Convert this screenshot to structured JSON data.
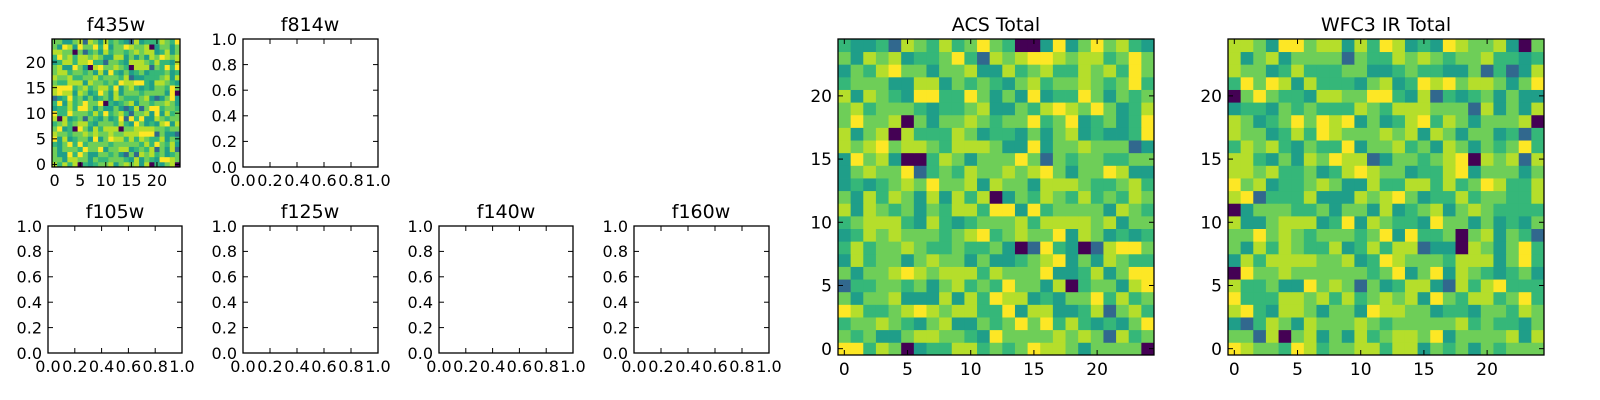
{
  "chart_data": [
    {
      "type": "heatmap",
      "title": "f435w",
      "xlim": [
        -0.5,
        24.5
      ],
      "ylim": [
        -0.5,
        24.5
      ],
      "xticks": [
        0,
        5,
        10,
        15,
        20
      ],
      "yticks": [
        0,
        5,
        10,
        15,
        20
      ],
      "grid_shape": [
        25,
        25
      ],
      "colormap": "viridis",
      "dark_cells": [
        [
          5,
          0
        ],
        [
          19,
          0
        ],
        [
          24,
          0
        ],
        [
          4,
          7
        ],
        [
          13,
          7
        ],
        [
          1,
          9
        ],
        [
          10,
          12
        ],
        [
          24,
          14
        ],
        [
          7,
          19
        ],
        [
          15,
          19
        ],
        [
          4,
          22
        ],
        [
          19,
          23
        ]
      ]
    },
    {
      "type": "empty",
      "title": "f814w",
      "xlim": [
        0,
        1
      ],
      "ylim": [
        0,
        1
      ],
      "xticks": [
        "0.0",
        "0.2",
        "0.4",
        "0.6",
        "0.8",
        "1.0"
      ],
      "yticks": [
        "0.0",
        "0.2",
        "0.4",
        "0.6",
        "0.8",
        "1.0"
      ]
    },
    {
      "type": "empty",
      "title": "f105w",
      "xlim": [
        0,
        1
      ],
      "ylim": [
        0,
        1
      ],
      "xticks": [
        "0.0",
        "0.2",
        "0.4",
        "0.6",
        "0.8",
        "1.0"
      ],
      "yticks": [
        "0.0",
        "0.2",
        "0.4",
        "0.6",
        "0.8",
        "1.0"
      ]
    },
    {
      "type": "empty",
      "title": "f125w",
      "xlim": [
        0,
        1
      ],
      "ylim": [
        0,
        1
      ],
      "xticks": [
        "0.0",
        "0.2",
        "0.4",
        "0.6",
        "0.8",
        "1.0"
      ],
      "yticks": [
        "0.0",
        "0.2",
        "0.4",
        "0.6",
        "0.8",
        "1.0"
      ]
    },
    {
      "type": "empty",
      "title": "f140w",
      "xlim": [
        0,
        1
      ],
      "ylim": [
        0,
        1
      ],
      "xticks": [
        "0.0",
        "0.2",
        "0.4",
        "0.6",
        "0.8",
        "1.0"
      ],
      "yticks": [
        "0.0",
        "0.2",
        "0.4",
        "0.6",
        "0.8",
        "1.0"
      ]
    },
    {
      "type": "empty",
      "title": "f160w",
      "xlim": [
        0,
        1
      ],
      "ylim": [
        0,
        1
      ],
      "xticks": [
        "0.0",
        "0.2",
        "0.4",
        "0.6",
        "0.8",
        "1.0"
      ],
      "yticks": [
        "0.0",
        "0.2",
        "0.4",
        "0.6",
        "0.8",
        "1.0"
      ]
    },
    {
      "type": "heatmap",
      "title": "ACS Total",
      "xlim": [
        -0.5,
        24.5
      ],
      "ylim": [
        -0.5,
        24.5
      ],
      "xticks": [
        0,
        5,
        10,
        15,
        20
      ],
      "yticks": [
        0,
        5,
        10,
        15,
        20
      ],
      "grid_shape": [
        25,
        25
      ],
      "colormap": "viridis",
      "dark_cells": [
        [
          5,
          0
        ],
        [
          24,
          0
        ],
        [
          18,
          5
        ],
        [
          14,
          8
        ],
        [
          19,
          8
        ],
        [
          12,
          12
        ],
        [
          5,
          15
        ],
        [
          6,
          15
        ],
        [
          4,
          17
        ],
        [
          5,
          18
        ],
        [
          14,
          24
        ],
        [
          15,
          24
        ]
      ]
    },
    {
      "type": "heatmap",
      "title": "WFC3 IR Total",
      "xlim": [
        -0.5,
        24.5
      ],
      "ylim": [
        -0.5,
        24.5
      ],
      "xticks": [
        0,
        5,
        10,
        15,
        20
      ],
      "yticks": [
        0,
        5,
        10,
        15,
        20
      ],
      "grid_shape": [
        25,
        25
      ],
      "colormap": "viridis",
      "dark_cells": [
        [
          4,
          1
        ],
        [
          0,
          6
        ],
        [
          18,
          8
        ],
        [
          18,
          9
        ],
        [
          0,
          11
        ],
        [
          19,
          15
        ],
        [
          0,
          20
        ],
        [
          24,
          18
        ],
        [
          23,
          24
        ]
      ]
    }
  ]
}
